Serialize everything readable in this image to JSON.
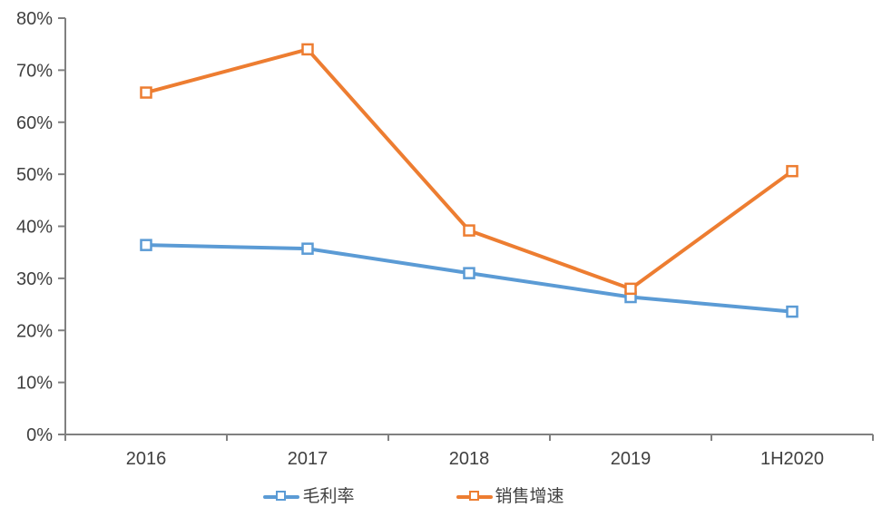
{
  "chart_data": {
    "type": "line",
    "title": "",
    "categories": [
      "2016",
      "2017",
      "2018",
      "2019",
      "1H2020"
    ],
    "series": [
      {
        "key": "gross-margin",
        "name": "毛利率",
        "color": "#5B9BD5",
        "values": [
          36.4,
          35.7,
          31.0,
          26.4,
          23.6
        ]
      },
      {
        "key": "sales-growth",
        "name": "销售增速",
        "color": "#ED7D31",
        "values": [
          65.7,
          74.0,
          39.2,
          28.0,
          50.6
        ]
      }
    ],
    "y_axis": {
      "min": 0,
      "max": 80,
      "step": 10,
      "tick_labels": [
        "0%",
        "10%",
        "20%",
        "30%",
        "40%",
        "50%",
        "60%",
        "70%",
        "80%"
      ]
    },
    "x_axis": {
      "tick_labels": [
        "2016",
        "2017",
        "2018",
        "2019",
        "1H2020"
      ]
    },
    "legend_position": "bottom",
    "grid": false,
    "marker": "open-square",
    "axis_color": "#808080",
    "label_color": "#404040",
    "background_color": "#ffffff"
  }
}
